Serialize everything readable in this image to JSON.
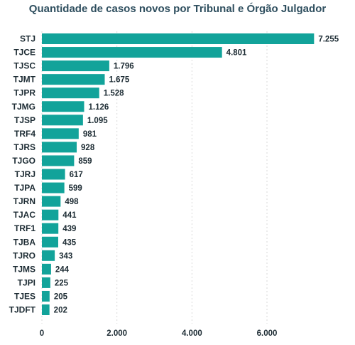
{
  "chart_data": {
    "type": "bar",
    "orientation": "horizontal",
    "title": "Quantidade de casos novos por Tribunal e Órgão Julgador",
    "categories": [
      "STJ",
      "TJCE",
      "TJSC",
      "TJMT",
      "TJPR",
      "TJMG",
      "TJSP",
      "TRF4",
      "TJRS",
      "TJGO",
      "TJRJ",
      "TJPA",
      "TJRN",
      "TJAC",
      "TRF1",
      "TJBA",
      "TJRO",
      "TJMS",
      "TJPI",
      "TJES",
      "TJDFT"
    ],
    "values": [
      7255,
      4801,
      1796,
      1675,
      1528,
      1126,
      1095,
      981,
      928,
      859,
      617,
      599,
      498,
      441,
      439,
      435,
      343,
      244,
      225,
      205,
      202
    ],
    "value_labels": [
      "7.255",
      "4.801",
      "1.796",
      "1.675",
      "1.528",
      "1.126",
      "1.095",
      "981",
      "928",
      "859",
      "617",
      "599",
      "498",
      "441",
      "439",
      "435",
      "343",
      "244",
      "225",
      "205",
      "202"
    ],
    "xticks": [
      0,
      2000,
      4000,
      6000
    ],
    "xtick_labels": [
      "0",
      "2.000",
      "4.000",
      "6.000"
    ],
    "xlim": [
      0,
      7400
    ],
    "xlabel": "",
    "ylabel": "",
    "grid": "vertical dashed",
    "bar_color": "#12a39a"
  }
}
